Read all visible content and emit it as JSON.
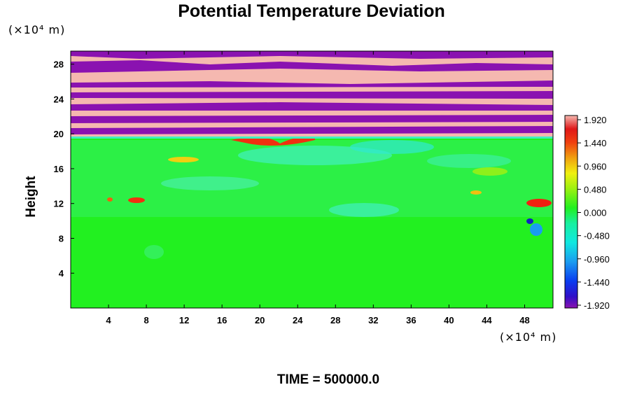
{
  "chart_data": {
    "type": "heatmap",
    "title": "Potential Temperature Deviation",
    "ylabel": "Height",
    "x_unit_label": "(×10⁴ m)",
    "y_unit_label": "(×10⁴ m)",
    "x_ticks": [
      4,
      8,
      12,
      16,
      20,
      24,
      28,
      32,
      36,
      40,
      44,
      48
    ],
    "y_ticks": [
      4,
      8,
      12,
      16,
      20,
      24,
      28
    ],
    "xlim": [
      0,
      51
    ],
    "ylim": [
      0,
      29.5
    ],
    "colorbar": {
      "labels": [
        "1.920",
        "1.440",
        "0.960",
        "0.480",
        "0.000",
        "-0.480",
        "-0.960",
        "-1.440",
        "-1.920"
      ],
      "range": [
        -2.0,
        2.0
      ]
    },
    "footer": "TIME = 500000.0"
  },
  "colors": {
    "max": "#f5b8b0",
    "min": "#8a12b0",
    "neutral": "#22f020"
  }
}
